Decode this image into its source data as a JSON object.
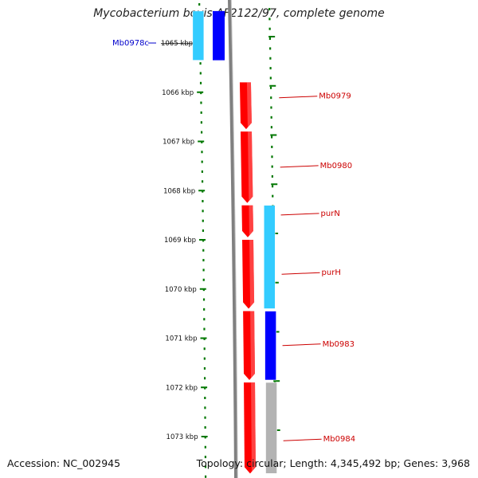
{
  "title": "Mycobacterium bovis AF2122/97, complete genome",
  "footer": {
    "accession": "Accession: NC_002945",
    "summary": "Topology: circular; Length: 4,345,492 bp; Genes: 3,968"
  },
  "colors": {
    "forward_gene": "#ff0000",
    "reverse_gene_light": "#33ccff",
    "reverse_gene_dark": "#0000ff",
    "reverse_gene_grey": "#b3b3b3",
    "backbone": "#808080",
    "tick_marks": "#007700",
    "forward_label": "#cc0000",
    "reverse_label": "#0000cc"
  },
  "axis": {
    "unit": "kbp",
    "ticks": [
      {
        "kbp": 1065,
        "label": "1065 kbp"
      },
      {
        "kbp": 1066,
        "label": "1066 kbp"
      },
      {
        "kbp": 1067,
        "label": "1067 kbp"
      },
      {
        "kbp": 1068,
        "label": "1068 kbp"
      },
      {
        "kbp": 1069,
        "label": "1069 kbp"
      },
      {
        "kbp": 1070,
        "label": "1070 kbp"
      },
      {
        "kbp": 1071,
        "label": "1071 kbp"
      },
      {
        "kbp": 1072,
        "label": "1072 kbp"
      },
      {
        "kbp": 1073,
        "label": "1073 kbp"
      }
    ]
  },
  "genes": [
    {
      "name": "Mb0978c",
      "strand": "reverse",
      "color": "dark",
      "start_kbp": 1064.35,
      "end_kbp": 1065.35
    },
    {
      "name": "Mb0979",
      "strand": "forward",
      "start_kbp": 1065.8,
      "end_kbp": 1066.75
    },
    {
      "name": "Mb0980",
      "strand": "forward",
      "start_kbp": 1066.8,
      "end_kbp": 1068.25
    },
    {
      "name": "purN",
      "strand": "forward",
      "start_kbp": 1068.3,
      "end_kbp": 1068.95
    },
    {
      "name": "purH",
      "strand": "forward",
      "start_kbp": 1069.0,
      "end_kbp": 1070.4
    },
    {
      "name": "Mb0983",
      "strand": "forward",
      "start_kbp": 1070.45,
      "end_kbp": 1071.85
    },
    {
      "name": "Mb0984",
      "strand": "forward",
      "start_kbp": 1071.9,
      "end_kbp": 1073.75
    }
  ],
  "reverse_blocks": [
    {
      "color": "light",
      "start_kbp": 1064.35,
      "end_kbp": 1065.35
    },
    {
      "color": "light",
      "start_kbp": 1068.3,
      "end_kbp": 1070.4
    },
    {
      "color": "dark",
      "start_kbp": 1070.45,
      "end_kbp": 1071.85
    },
    {
      "color": "grey",
      "start_kbp": 1071.9,
      "end_kbp": 1073.75
    }
  ]
}
